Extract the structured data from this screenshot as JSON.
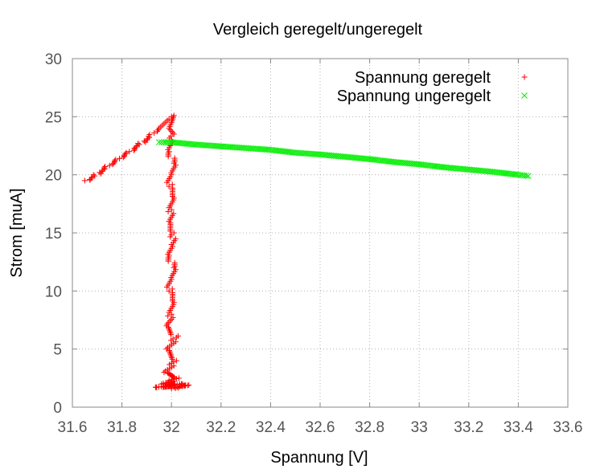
{
  "colors": {
    "geregelt": "#ff0000",
    "ungeregelt": "#00ee00",
    "grid": "#b0b0b0",
    "axis": "#888888"
  },
  "chart_data": {
    "type": "scatter",
    "title": "Vergleich geregelt/ungeregelt",
    "xlabel": "Spannung [V]",
    "ylabel": "Strom [muA]",
    "xlim": [
      31.6,
      33.6
    ],
    "ylim": [
      0,
      30
    ],
    "xticks": [
      "31.6",
      "31.8",
      "32",
      "32.2",
      "32.4",
      "32.6",
      "32.8",
      "33",
      "33.2",
      "33.4",
      "33.6"
    ],
    "yticks": [
      "0",
      "5",
      "10",
      "15",
      "20",
      "25",
      "30"
    ],
    "grid": true,
    "legend_position": "top-right",
    "series": [
      {
        "name": "Spannung geregelt",
        "marker": "plus",
        "color": "#ff0000",
        "points": [
          [
            31.65,
            19.5
          ],
          [
            31.67,
            19.6
          ],
          [
            31.69,
            19.9
          ],
          [
            31.71,
            20.2
          ],
          [
            31.73,
            20.5
          ],
          [
            31.75,
            20.8
          ],
          [
            31.77,
            21.1
          ],
          [
            31.79,
            21.4
          ],
          [
            31.81,
            21.7
          ],
          [
            31.83,
            22.0
          ],
          [
            31.85,
            22.3
          ],
          [
            31.87,
            22.6
          ],
          [
            31.89,
            22.9
          ],
          [
            31.91,
            23.2
          ],
          [
            31.93,
            23.6
          ],
          [
            31.95,
            24.0
          ],
          [
            31.97,
            24.4
          ],
          [
            31.99,
            24.8
          ],
          [
            32.0,
            25.0
          ],
          [
            32.01,
            25.1
          ],
          [
            32.0,
            24.5
          ],
          [
            31.99,
            24.0
          ],
          [
            32.01,
            23.5
          ],
          [
            32.0,
            23.0
          ],
          [
            31.99,
            22.0
          ],
          [
            32.01,
            21.0
          ],
          [
            32.0,
            20.0
          ],
          [
            31.99,
            19.0
          ],
          [
            32.01,
            18.0
          ],
          [
            32.0,
            17.0
          ],
          [
            31.99,
            16.0
          ],
          [
            32.01,
            15.0
          ],
          [
            32.0,
            14.0
          ],
          [
            31.99,
            13.0
          ],
          [
            32.01,
            12.0
          ],
          [
            32.0,
            11.0
          ],
          [
            31.99,
            10.0
          ],
          [
            32.01,
            9.0
          ],
          [
            32.0,
            8.0
          ],
          [
            31.98,
            7.0
          ],
          [
            32.02,
            6.0
          ],
          [
            31.98,
            5.0
          ],
          [
            32.02,
            4.0
          ],
          [
            31.97,
            3.0
          ],
          [
            32.03,
            2.5
          ],
          [
            31.96,
            2.0
          ],
          [
            32.04,
            2.0
          ],
          [
            31.94,
            1.7
          ],
          [
            32.07,
            1.9
          ],
          [
            32.0,
            1.6
          ]
        ]
      },
      {
        "name": "Spannung ungeregelt",
        "marker": "cross",
        "color": "#00ee00",
        "points": [
          [
            31.95,
            22.8
          ],
          [
            31.97,
            22.8
          ],
          [
            32.0,
            22.8
          ],
          [
            32.05,
            22.7
          ],
          [
            32.1,
            22.6
          ],
          [
            32.2,
            22.45
          ],
          [
            32.3,
            22.3
          ],
          [
            32.4,
            22.15
          ],
          [
            32.5,
            21.9
          ],
          [
            32.6,
            21.75
          ],
          [
            32.7,
            21.55
          ],
          [
            32.8,
            21.35
          ],
          [
            32.9,
            21.1
          ],
          [
            33.0,
            20.9
          ],
          [
            33.1,
            20.65
          ],
          [
            33.2,
            20.45
          ],
          [
            33.3,
            20.25
          ],
          [
            33.4,
            20.0
          ],
          [
            33.44,
            19.9
          ]
        ]
      }
    ]
  }
}
